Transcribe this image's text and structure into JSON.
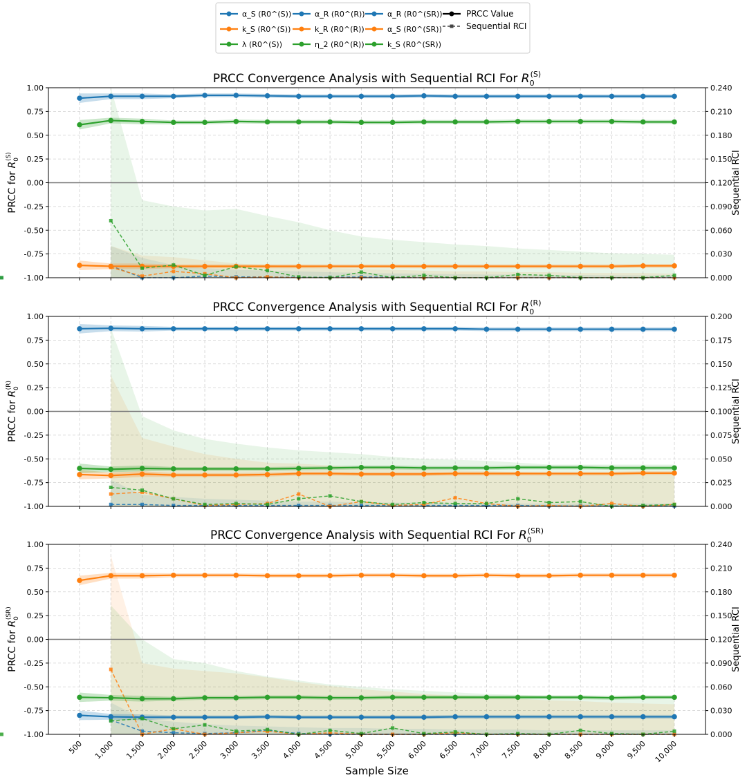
{
  "figure": {
    "xlabel": "Sample Size",
    "legend_location": "top-center",
    "legend_series": [
      {
        "label": "α_S (R0^(S))",
        "color": "#1f77b4"
      },
      {
        "label": "k_S (R0^(S))",
        "color": "#ff7f0e"
      },
      {
        "label": "λ (R0^(S))",
        "color": "#2ca02c"
      },
      {
        "label": "α_R (R0^(R))",
        "color": "#1f77b4"
      },
      {
        "label": "k_R (R0^(R))",
        "color": "#ff7f0e"
      },
      {
        "label": "η_2 (R0^(R))",
        "color": "#2ca02c"
      },
      {
        "label": "α_R (R0^(SR))",
        "color": "#1f77b4"
      },
      {
        "label": "α_S (R0^(SR))",
        "color": "#ff7f0e"
      },
      {
        "label": "k_S (R0^(SR))",
        "color": "#2ca02c"
      }
    ],
    "legend_style": [
      {
        "label": "PRCC Value",
        "style": "solid-circle"
      },
      {
        "label": "Sequential RCI",
        "style": "dashed-square"
      }
    ]
  },
  "chart_data": [
    {
      "type": "line",
      "title": "PRCC Convergence Analysis with Sequential RCI For R0^(S)",
      "title_prefix": "PRCC Convergence Analysis with Sequential RCI For ",
      "title_sub": "0",
      "title_sup": "(S)",
      "ylabel": "PRCC for R0^(S)",
      "y2label": "Sequential RCI",
      "x": [
        500,
        1000,
        1500,
        2000,
        2500,
        3000,
        3500,
        4000,
        4500,
        5000,
        5500,
        6000,
        6500,
        7000,
        7500,
        8000,
        8500,
        9000,
        9500,
        10000
      ],
      "x_tick_labels": [
        "500",
        "1,000",
        "1,500",
        "2,000",
        "2,500",
        "3,000",
        "3,500",
        "4,000",
        "4,500",
        "5,000",
        "5,500",
        "6,000",
        "6,500",
        "7,000",
        "7,500",
        "8,000",
        "8,500",
        "9,000",
        "9,500",
        "10,000"
      ],
      "ylim": [
        -1.0,
        1.0
      ],
      "y_ticks": [
        "-1.00",
        "-0.75",
        "-0.50",
        "-0.25",
        "0.00",
        "0.25",
        "0.50",
        "0.75",
        "1.00"
      ],
      "y2lim": [
        0,
        0.24
      ],
      "y2_ticks": [
        "0.000",
        "0.030",
        "0.060",
        "0.090",
        "0.120",
        "0.150",
        "0.180",
        "0.210",
        "0.240"
      ],
      "series": [
        {
          "name": "α_S (R0^(S))",
          "color": "#1f77b4",
          "values": [
            0.89,
            0.91,
            0.91,
            0.91,
            0.92,
            0.92,
            0.915,
            0.91,
            0.91,
            0.91,
            0.91,
            0.915,
            0.91,
            0.91,
            0.91,
            0.91,
            0.91,
            0.91,
            0.91,
            0.91
          ],
          "rci": [
            0.015,
            0.0,
            0.0,
            0.002,
            0.001,
            0.001,
            0.0005,
            0.0005,
            0.001,
            0.0005,
            0.0,
            0.0,
            0.0,
            0.0,
            0.0,
            0.0,
            0.0,
            0.0,
            0.0005,
            0.0
          ],
          "rci_band": [
            0.04,
            0.025,
            0.016,
            0.012,
            0.01,
            0.009,
            0.008,
            0.007,
            0.006,
            0.0055,
            0.005,
            0.0045,
            0.004,
            0.004,
            0.0035,
            0.0035,
            0.003,
            0.003,
            0.003,
            0.003
          ]
        },
        {
          "name": "k_S (R0^(S))",
          "color": "#ff7f0e",
          "values": [
            -0.87,
            -0.88,
            -0.88,
            -0.88,
            -0.88,
            -0.88,
            -0.88,
            -0.88,
            -0.88,
            -0.88,
            -0.88,
            -0.88,
            -0.88,
            -0.88,
            -0.88,
            -0.88,
            -0.88,
            -0.88,
            -0.875,
            -0.875
          ],
          "rci": [
            0.013,
            0.002,
            0.008,
            0.005,
            0.0,
            0.001,
            0.0,
            0.0,
            0.0,
            0.0,
            0.0,
            0.0,
            0.0,
            0.0,
            0.0,
            0.0,
            0.0,
            0.0,
            0.0
          ],
          "rci_band": [
            0.04,
            0.028,
            0.026,
            0.022,
            0.018,
            0.016,
            0.014,
            0.012,
            0.011,
            0.01,
            0.009,
            0.008,
            0.008,
            0.007,
            0.007,
            0.006,
            0.006,
            0.006,
            0.005,
            0.005
          ]
        },
        {
          "name": "λ (R0^(S))",
          "color": "#2ca02c",
          "values": [
            0.61,
            0.655,
            0.645,
            0.635,
            0.635,
            0.645,
            0.64,
            0.64,
            0.64,
            0.635,
            0.635,
            0.64,
            0.64,
            0.64,
            0.645,
            0.645,
            0.645,
            0.645,
            0.64,
            0.64
          ],
          "rci": [
            0.072,
            0.012,
            0.016,
            0.003,
            0.014,
            0.009,
            0.001,
            0.0,
            0.007,
            0.0,
            0.003,
            0.0,
            0.0,
            0.004,
            0.003,
            0.0,
            0.0,
            0.0,
            0.003,
            0.0
          ],
          "rci_band": [
            0.24,
            0.098,
            0.09,
            0.085,
            0.087,
            0.078,
            0.07,
            0.06,
            0.052,
            0.048,
            0.045,
            0.042,
            0.04,
            0.037,
            0.035,
            0.033,
            0.031,
            0.03,
            0.029,
            0.027
          ]
        }
      ]
    },
    {
      "type": "line",
      "title": "PRCC Convergence Analysis with Sequential RCI For R0^(R)",
      "title_prefix": "PRCC Convergence Analysis with Sequential RCI For ",
      "title_sub": "0",
      "title_sup": "(R)",
      "ylabel": "PRCC for R0^(R)",
      "y2label": "Sequential RCI",
      "x": [
        500,
        1000,
        1500,
        2000,
        2500,
        3000,
        3500,
        4000,
        4500,
        5000,
        5500,
        6000,
        6500,
        7000,
        7500,
        8000,
        8500,
        9000,
        9500,
        10000
      ],
      "x_tick_labels": [
        "500",
        "1,000",
        "1,500",
        "2,000",
        "2,500",
        "3,000",
        "3,500",
        "4,000",
        "4,500",
        "5,000",
        "5,500",
        "6,000",
        "6,500",
        "7,000",
        "7,500",
        "8,000",
        "8,500",
        "9,000",
        "9,500",
        "10,000"
      ],
      "ylim": [
        -1.0,
        1.0
      ],
      "y_ticks": [
        "-1.00",
        "-0.75",
        "-0.50",
        "-0.25",
        "0.00",
        "0.25",
        "0.50",
        "0.75",
        "1.00"
      ],
      "y2lim": [
        0,
        0.2
      ],
      "y2_ticks": [
        "0.000",
        "0.025",
        "0.050",
        "0.075",
        "0.100",
        "0.125",
        "0.150",
        "0.175",
        "0.200"
      ],
      "series": [
        {
          "name": "α_R (R0^(R))",
          "color": "#1f77b4",
          "values": [
            0.87,
            0.875,
            0.87,
            0.87,
            0.87,
            0.87,
            0.87,
            0.87,
            0.87,
            0.87,
            0.87,
            0.87,
            0.87,
            0.865,
            0.865,
            0.865,
            0.865,
            0.865,
            0.865,
            0.865
          ],
          "rci": [
            0.002,
            0.002,
            0.001,
            0.001,
            0.001,
            0.001,
            0.001,
            0.001,
            0.001,
            0.001,
            0.001,
            0.001,
            0.001,
            0.001,
            0.0005,
            0.0005,
            0.0005,
            0.0005,
            0.0005
          ],
          "rci_band": [
            0.028,
            0.012,
            0.01,
            0.008,
            0.007,
            0.006,
            0.005,
            0.005,
            0.004,
            0.004,
            0.004,
            0.003,
            0.003,
            0.003,
            0.003,
            0.003,
            0.003,
            0.003,
            0.003,
            0.003
          ]
        },
        {
          "name": "k_R (R0^(R))",
          "color": "#ff7f0e",
          "values": [
            -0.665,
            -0.675,
            -0.66,
            -0.67,
            -0.67,
            -0.67,
            -0.665,
            -0.655,
            -0.655,
            -0.66,
            -0.66,
            -0.66,
            -0.655,
            -0.655,
            -0.655,
            -0.655,
            -0.655,
            -0.655,
            -0.65,
            -0.65
          ],
          "rci": [
            0.013,
            0.015,
            0.008,
            0.001,
            0.002,
            0.003,
            0.013,
            0.0,
            0.005,
            0.001,
            0.002,
            0.009,
            0.003,
            0.0,
            0.001,
            0.0,
            0.003,
            0.0,
            0.002
          ],
          "rci_band": [
            0.138,
            0.072,
            0.063,
            0.055,
            0.05,
            0.046,
            0.045,
            0.043,
            0.041,
            0.04,
            0.039,
            0.038,
            0.037,
            0.036,
            0.035,
            0.035,
            0.034,
            0.034,
            0.034,
            0.034
          ]
        },
        {
          "name": "η_2 (R0^(R))",
          "color": "#2ca02c",
          "values": [
            -0.6,
            -0.61,
            -0.6,
            -0.605,
            -0.605,
            -0.605,
            -0.605,
            -0.6,
            -0.595,
            -0.59,
            -0.59,
            -0.595,
            -0.595,
            -0.595,
            -0.59,
            -0.59,
            -0.59,
            -0.595,
            -0.595,
            -0.595
          ],
          "rci": [
            0.02,
            0.017,
            0.008,
            0.002,
            0.003,
            0.002,
            0.008,
            0.011,
            0.005,
            0.002,
            0.004,
            0.003,
            0.003,
            0.008,
            0.004,
            0.005,
            0.0,
            0.001,
            0.002
          ],
          "rci_band": [
            0.188,
            0.095,
            0.08,
            0.071,
            0.066,
            0.062,
            0.059,
            0.057,
            0.055,
            0.052,
            0.05,
            0.049,
            0.048,
            0.046,
            0.044,
            0.044,
            0.044,
            0.044,
            0.044,
            0.044
          ]
        }
      ]
    },
    {
      "type": "line",
      "title": "PRCC Convergence Analysis with Sequential RCI For R0^(SR)",
      "title_prefix": "PRCC Convergence Analysis with Sequential RCI For ",
      "title_sub": "0",
      "title_sup": "(SR)",
      "ylabel": "PRCC for R0^(SR)",
      "y2label": "Sequential RCI",
      "x": [
        500,
        1000,
        1500,
        2000,
        2500,
        3000,
        3500,
        4000,
        4500,
        5000,
        5500,
        6000,
        6500,
        7000,
        7500,
        8000,
        8500,
        9000,
        9500,
        10000
      ],
      "x_tick_labels": [
        "500",
        "1,000",
        "1,500",
        "2,000",
        "2,500",
        "3,000",
        "3,500",
        "4,000",
        "4,500",
        "5,000",
        "5,500",
        "6,000",
        "6,500",
        "7,000",
        "7,500",
        "8,000",
        "8,500",
        "9,000",
        "9,500",
        "10,000"
      ],
      "ylim": [
        -1.0,
        1.0
      ],
      "y_ticks": [
        "-1.00",
        "-0.75",
        "-0.50",
        "-0.25",
        "0.00",
        "0.25",
        "0.50",
        "0.75",
        "1.00"
      ],
      "y2lim": [
        0,
        0.24
      ],
      "y2_ticks": [
        "0.000",
        "0.030",
        "0.060",
        "0.090",
        "0.120",
        "0.150",
        "0.180",
        "0.210",
        "0.240"
      ],
      "series": [
        {
          "name": "α_R (R0^(SR))",
          "color": "#1f77b4",
          "values": [
            -0.8,
            -0.815,
            -0.82,
            -0.82,
            -0.82,
            -0.82,
            -0.815,
            -0.82,
            -0.82,
            -0.82,
            -0.82,
            -0.82,
            -0.815,
            -0.815,
            -0.815,
            -0.815,
            -0.815,
            -0.815,
            -0.815,
            -0.815
          ],
          "rci": [
            0.018,
            0.004,
            0.002,
            0.001,
            0.002,
            0.005,
            0.001,
            0.0,
            0.0,
            0.0,
            0.0,
            0.0,
            0.0,
            0.0,
            0.0,
            0.0,
            0.0,
            0.0,
            0.0
          ],
          "rci_band": [
            0.04,
            0.02,
            0.016,
            0.013,
            0.011,
            0.01,
            0.009,
            0.008,
            0.008,
            0.007,
            0.007,
            0.006,
            0.006,
            0.006,
            0.005,
            0.005,
            0.005,
            0.005,
            0.005,
            0.005
          ]
        },
        {
          "name": "α_S (R0^(SR))",
          "color": "#ff7f0e",
          "values": [
            0.62,
            0.67,
            0.67,
            0.675,
            0.675,
            0.675,
            0.67,
            0.67,
            0.67,
            0.675,
            0.675,
            0.67,
            0.67,
            0.675,
            0.67,
            0.67,
            0.675,
            0.675,
            0.675,
            0.675
          ],
          "rci": [
            0.082,
            0.0,
            0.007,
            0.0,
            0.002,
            0.004,
            0.0,
            0.002,
            0.0,
            0.0,
            0.0,
            0.002,
            0.0,
            0.0,
            0.0,
            0.0,
            0.0,
            0.0,
            0.0
          ],
          "rci_band": [
            0.226,
            0.09,
            0.083,
            0.08,
            0.077,
            0.072,
            0.066,
            0.061,
            0.057,
            0.054,
            0.051,
            0.049,
            0.047,
            0.045,
            0.043,
            0.042,
            0.04,
            0.039,
            0.038,
            0.037
          ]
        },
        {
          "name": "k_S (R0^(SR))",
          "color": "#2ca02c",
          "values": [
            -0.61,
            -0.615,
            -0.625,
            -0.625,
            -0.615,
            -0.615,
            -0.61,
            -0.61,
            -0.615,
            -0.615,
            -0.61,
            -0.61,
            -0.61,
            -0.61,
            -0.61,
            -0.61,
            -0.61,
            -0.615,
            -0.61,
            -0.61
          ],
          "rci": [
            0.017,
            0.02,
            0.007,
            0.012,
            0.004,
            0.006,
            0.0,
            0.005,
            0.001,
            0.008,
            0.001,
            0.003,
            0.0,
            0.001,
            0.0,
            0.005,
            0.001,
            0.0,
            0.004,
            0.0
          ],
          "rci_band": [
            0.163,
            0.12,
            0.095,
            0.09,
            0.08,
            0.073,
            0.068,
            0.063,
            0.06,
            0.057,
            0.055,
            0.053,
            0.051,
            0.05,
            0.048,
            0.047,
            0.046,
            0.045,
            0.044,
            0.043
          ]
        }
      ]
    }
  ]
}
